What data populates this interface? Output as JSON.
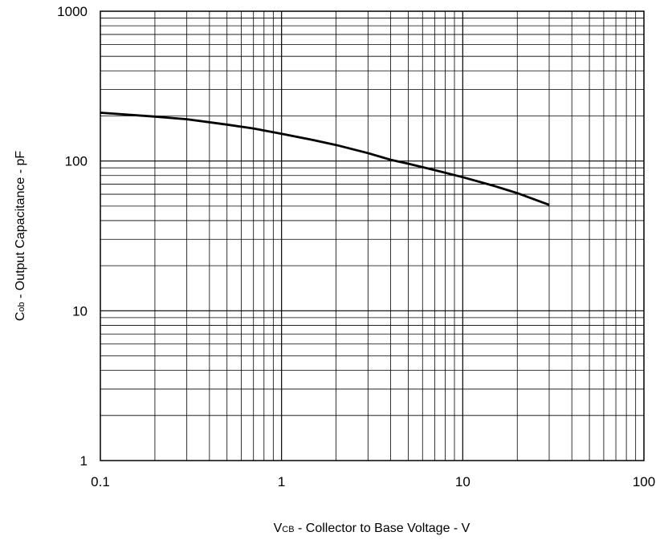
{
  "chart_data": {
    "type": "line",
    "x_scale": "log",
    "y_scale": "log",
    "xlim": [
      0.1,
      100
    ],
    "ylim": [
      1,
      1000
    ],
    "grid": true,
    "x_ticks": [
      0.1,
      1,
      10,
      100
    ],
    "x_tick_labels": [
      "0.1",
      "1",
      "10",
      "100"
    ],
    "y_ticks": [
      1,
      10,
      100,
      1000
    ],
    "y_tick_labels": [
      "1",
      "10",
      "100",
      "1000"
    ],
    "xlabel": {
      "main": "V",
      "sub": "CB",
      "rest": " - Collector to Base Voltage - V"
    },
    "ylabel": {
      "main": "C",
      "sub": "ob",
      "rest": " - Output Capacitance - pF"
    },
    "series": [
      {
        "x": [
          0.1,
          0.2,
          0.3,
          0.5,
          0.7,
          1,
          1.5,
          2,
          3,
          4,
          5,
          7,
          10,
          15,
          20,
          30
        ],
        "y": [
          210,
          198,
          190,
          175,
          165,
          152,
          138,
          128,
          113,
          102,
          96,
          87,
          78,
          68,
          61,
          51
        ]
      }
    ],
    "line_color": "#000000"
  }
}
